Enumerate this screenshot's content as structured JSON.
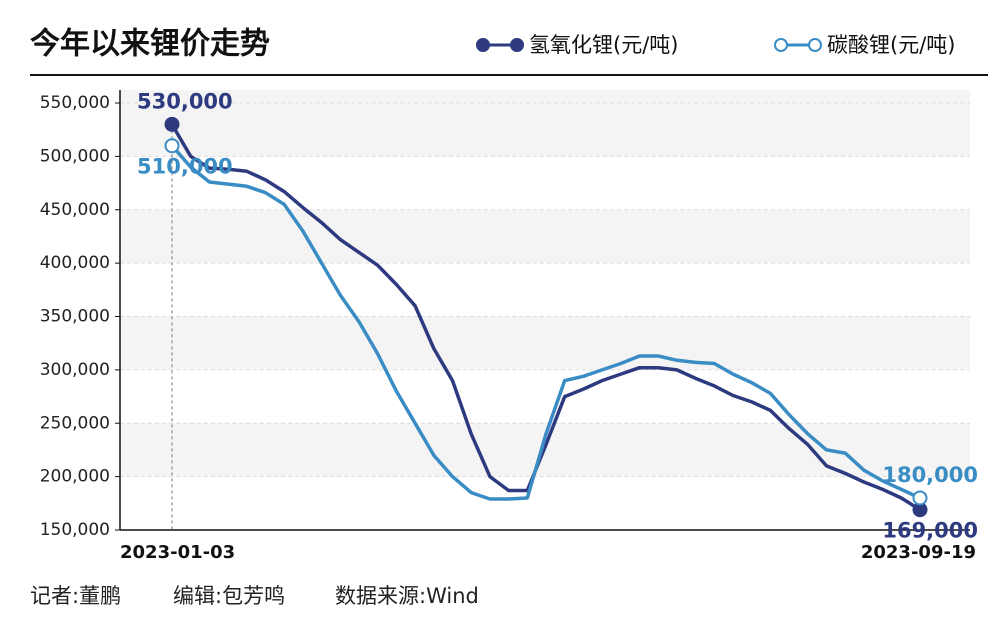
{
  "chart_data": {
    "type": "line",
    "title": "今年以来锂价走势",
    "categories": [
      "2023-01-03",
      null,
      null,
      null,
      null,
      null,
      null,
      null,
      null,
      null,
      null,
      null,
      null,
      null,
      null,
      null,
      null,
      null,
      null,
      null,
      null,
      null,
      null,
      null,
      null,
      null,
      null,
      null,
      null,
      null,
      null,
      null,
      null,
      null,
      null,
      null,
      null,
      null,
      null,
      null,
      "2023-09-19"
    ],
    "series": [
      {
        "name": "氢氧化锂(元/吨)",
        "color": "#2e3a7f",
        "marker": "filled",
        "values": [
          530000,
          500000,
          489000,
          488000,
          486000,
          478000,
          467000,
          452000,
          438000,
          422000,
          410000,
          398000,
          380000,
          360000,
          320000,
          290000,
          240000,
          200000,
          187000,
          187000,
          230000,
          275000,
          282000,
          290000,
          296000,
          302000,
          302000,
          300000,
          292000,
          285000,
          276000,
          270000,
          262000,
          245000,
          230000,
          210000,
          203000,
          195000,
          188000,
          180000,
          169000
        ],
        "value_labels": [
          "530,000",
          null,
          null,
          null,
          null,
          null,
          null,
          null,
          null,
          null,
          null,
          null,
          null,
          null,
          null,
          null,
          null,
          null,
          null,
          null,
          null,
          null,
          null,
          null,
          null,
          null,
          null,
          null,
          null,
          null,
          null,
          null,
          null,
          null,
          null,
          null,
          null,
          null,
          null,
          null,
          "169,000"
        ]
      },
      {
        "name": "碳酸锂(元/吨)",
        "color": "#3a8cc4",
        "marker": "hollow",
        "values": [
          510000,
          490000,
          476000,
          474000,
          472000,
          466000,
          455000,
          430000,
          400000,
          370000,
          345000,
          315000,
          280000,
          250000,
          220000,
          200000,
          185000,
          179000,
          179000,
          180000,
          240000,
          290000,
          294000,
          300000,
          306000,
          313000,
          313000,
          309000,
          307000,
          306000,
          296000,
          288000,
          278000,
          258000,
          240000,
          225000,
          222000,
          206000,
          196000,
          188000,
          180000
        ],
        "value_labels": [
          "510,000",
          null,
          null,
          null,
          null,
          null,
          null,
          null,
          null,
          null,
          null,
          null,
          null,
          null,
          null,
          null,
          null,
          null,
          null,
          null,
          null,
          null,
          null,
          null,
          null,
          null,
          null,
          null,
          null,
          null,
          null,
          null,
          null,
          null,
          null,
          null,
          null,
          null,
          null,
          null,
          "180,000"
        ]
      }
    ],
    "ylim": [
      150000,
      550000
    ],
    "yticks": [
      {
        "value": 150000,
        "label": "150,000"
      },
      {
        "value": 200000,
        "label": "200,000"
      },
      {
        "value": 250000,
        "label": "250,000"
      },
      {
        "value": 300000,
        "label": "300,000"
      },
      {
        "value": 350000,
        "label": "350,000"
      },
      {
        "value": 400000,
        "label": "400,000"
      },
      {
        "value": 450000,
        "label": "450,000"
      },
      {
        "value": 500000,
        "label": "500,000"
      },
      {
        "value": 550000,
        "label": "550,000"
      }
    ],
    "grid": true
  },
  "credits": [
    "记者:董鹏",
    "编辑:包芳鸣",
    "数据来源:Wind"
  ]
}
